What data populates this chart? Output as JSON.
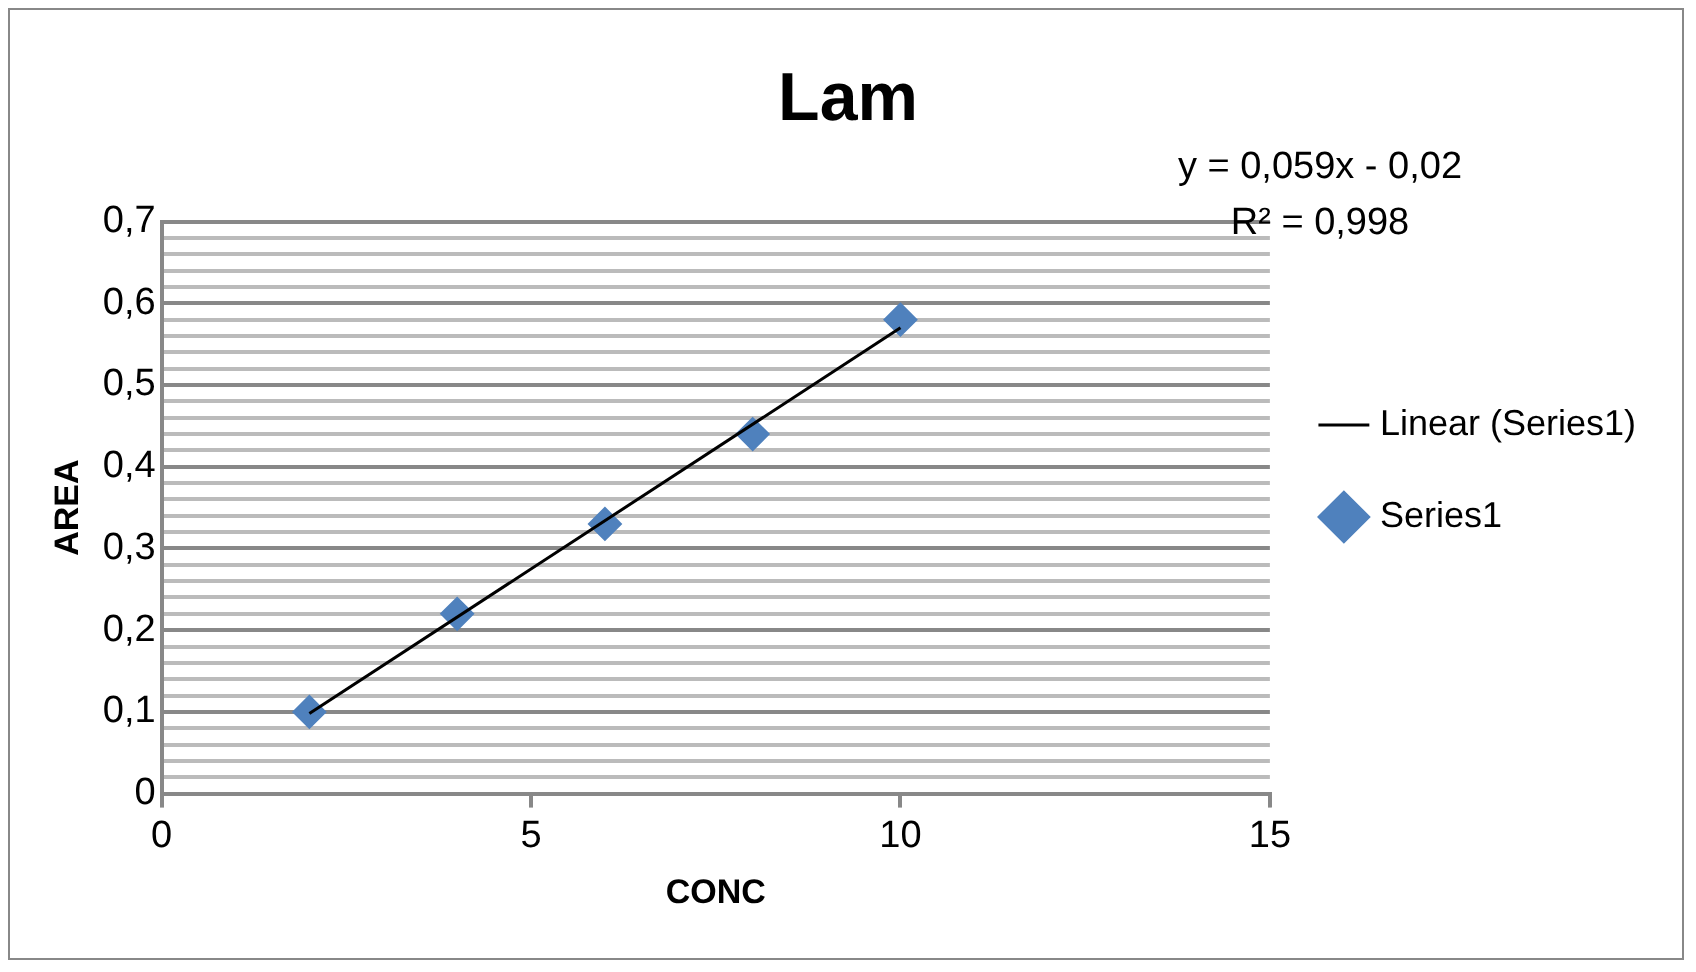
{
  "chart_data": {
    "type": "scatter",
    "title": "Lam",
    "xlabel": "CONC",
    "ylabel": "AREA",
    "xlim": [
      0,
      15
    ],
    "xticks": [
      0,
      5,
      10,
      15
    ],
    "ylim": [
      0,
      0.7
    ],
    "yticks": [
      0,
      {
        "value": 0.02,
        "label": null
      },
      {
        "value": 0.04,
        "label": null
      },
      {
        "value": 0.06,
        "label": null
      },
      {
        "value": 0.08,
        "label": null
      },
      {
        "value": 0.1,
        "label": "0,1"
      },
      {
        "value": 0.12,
        "label": null
      },
      {
        "value": 0.14,
        "label": null
      },
      {
        "value": 0.16,
        "label": null
      },
      {
        "value": 0.18,
        "label": null
      },
      {
        "value": 0.2,
        "label": "0,2"
      },
      {
        "value": 0.22,
        "label": null
      },
      {
        "value": 0.24,
        "label": null
      },
      {
        "value": 0.26,
        "label": null
      },
      {
        "value": 0.28,
        "label": null
      },
      {
        "value": 0.3,
        "label": "0,3"
      },
      {
        "value": 0.32,
        "label": null
      },
      {
        "value": 0.34,
        "label": null
      },
      {
        "value": 0.36,
        "label": null
      },
      {
        "value": 0.38,
        "label": null
      },
      {
        "value": 0.4,
        "label": "0,4"
      },
      {
        "value": 0.42,
        "label": null
      },
      {
        "value": 0.44,
        "label": null
      },
      {
        "value": 0.46,
        "label": null
      },
      {
        "value": 0.48,
        "label": null
      },
      {
        "value": 0.5,
        "label": "0,5"
      },
      {
        "value": 0.52,
        "label": null
      },
      {
        "value": 0.54,
        "label": null
      },
      {
        "value": 0.56,
        "label": null
      },
      {
        "value": 0.58,
        "label": null
      },
      {
        "value": 0.6,
        "label": "0,6"
      },
      {
        "value": 0.62,
        "label": null
      },
      {
        "value": 0.64,
        "label": null
      },
      {
        "value": 0.66,
        "label": null
      },
      {
        "value": 0.68,
        "label": null
      },
      {
        "value": 0.7,
        "label": "0,7"
      }
    ],
    "grid": "y",
    "legend": "right",
    "annotations": [
      "y = 0,059x - 0,02",
      "R² = 0,998"
    ],
    "series": [
      {
        "name": "Series1",
        "color": "#4f81bd",
        "marker": "diamond",
        "x": [
          2,
          4,
          6,
          8,
          10
        ],
        "values": [
          0.1,
          0.22,
          0.33,
          0.44,
          0.58
        ]
      },
      {
        "name": "Linear (Series1)",
        "type": "line",
        "color": "#000000",
        "marker": "none",
        "line_style": "solid",
        "x": [
          2,
          10
        ],
        "values": [
          0.098,
          0.57
        ]
      }
    ]
  }
}
